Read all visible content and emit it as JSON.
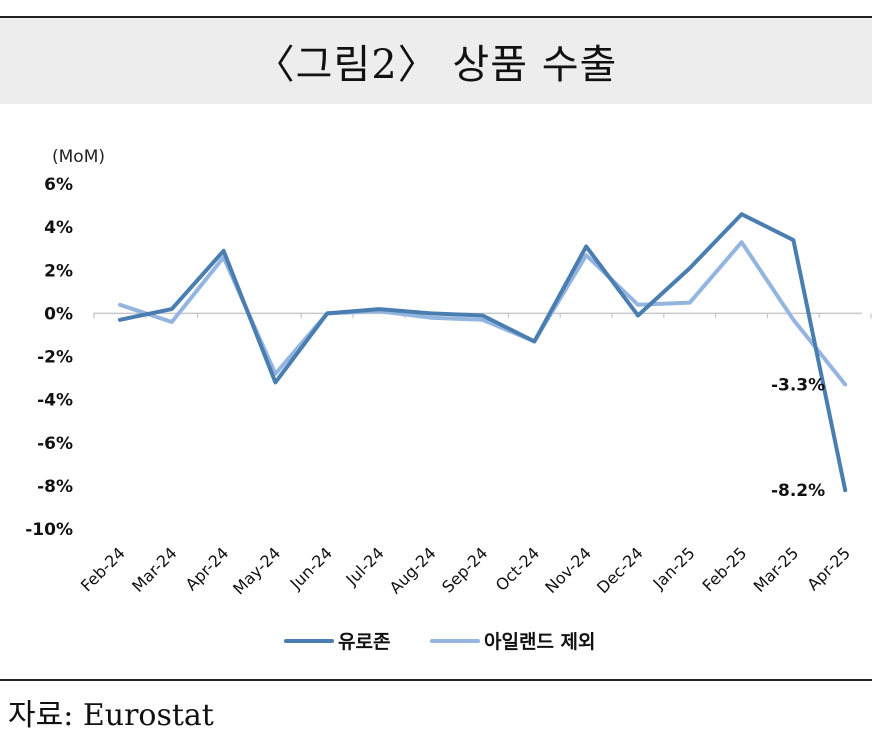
{
  "title": "〈그림2〉 상품 수출",
  "source": "자료: Eurostat",
  "chart_data": {
    "type": "line",
    "unit_label": "(MoM)",
    "categories": [
      "Feb-24",
      "Mar-24",
      "Apr-24",
      "May-24",
      "Jun-24",
      "Jul-24",
      "Aug-24",
      "Sep-24",
      "Oct-24",
      "Nov-24",
      "Dec-24",
      "Jan-25",
      "Feb-25",
      "Mar-25",
      "Apr-25"
    ],
    "y_ticks": [
      "6%",
      "4%",
      "2%",
      "0%",
      "-2%",
      "-4%",
      "-6%",
      "-8%",
      "-10%"
    ],
    "ylim": [
      -10,
      6
    ],
    "y_tick_values": [
      6,
      4,
      2,
      0,
      -2,
      -4,
      -6,
      -8,
      -10
    ],
    "series": [
      {
        "name": "유로존",
        "color": "#4a7eb0",
        "values": [
          -0.3,
          0.2,
          2.9,
          -3.2,
          0.0,
          0.2,
          0.0,
          -0.1,
          -1.3,
          3.1,
          -0.1,
          2.1,
          4.6,
          3.4,
          -8.2
        ],
        "end_label": "-8.2%"
      },
      {
        "name": "아일랜드 제외",
        "color": "#93b5e0",
        "values": [
          0.4,
          -0.4,
          2.6,
          -2.8,
          0.0,
          0.1,
          -0.2,
          -0.3,
          -1.3,
          2.7,
          0.4,
          0.5,
          3.3,
          -0.3,
          -3.3
        ],
        "end_label": "-3.3%"
      }
    ],
    "grid": false,
    "legend": "bottom-center"
  }
}
